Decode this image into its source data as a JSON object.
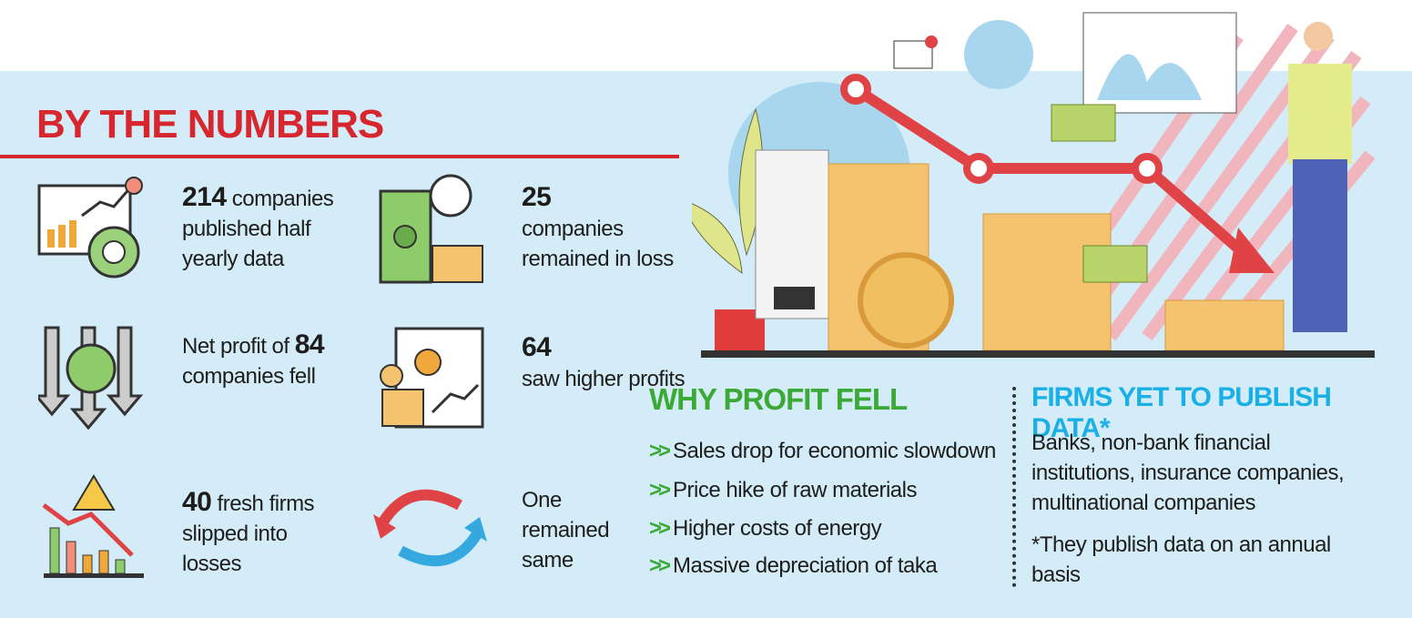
{
  "title": "BY THE NUMBERS",
  "stats": [
    {
      "number": 214,
      "after": "companies published half yearly data"
    },
    {
      "number": 25,
      "after": "companies remained in loss"
    },
    {
      "before": "Net profit of",
      "number": 84,
      "after": "companies fell"
    },
    {
      "number": 64,
      "after": "saw higher profits"
    },
    {
      "number": 40,
      "after": "fresh firms slipped into losses"
    },
    {
      "text": "One remained same"
    }
  ],
  "why": {
    "title": "WHY PROFIT FELL",
    "items": [
      "Sales drop for economic slowdown",
      "Price hike of raw materials",
      "Higher costs of energy",
      "Massive depreciation of taka"
    ]
  },
  "firms": {
    "title": "FIRMS YET TO PUBLISH DATA*",
    "body": "Banks, non-bank financial institutions, insurance companies, multinational companies",
    "note": "*They publish data on an annual basis"
  }
}
